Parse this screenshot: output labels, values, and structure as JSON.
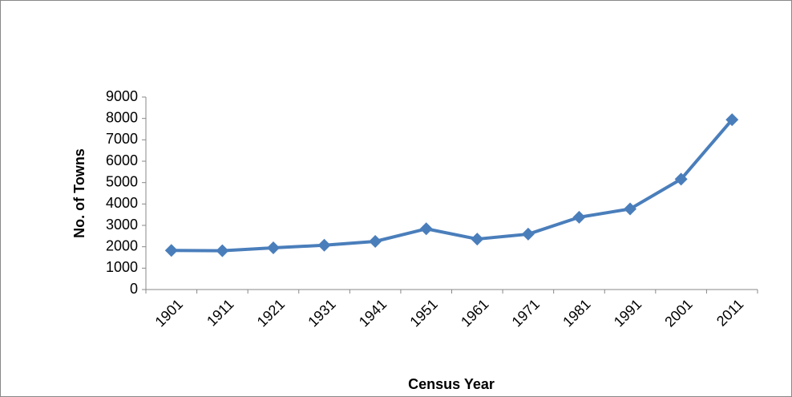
{
  "chart_data": {
    "type": "line",
    "categories": [
      "1901",
      "1911",
      "1921",
      "1931",
      "1941",
      "1951",
      "1961",
      "1971",
      "1981",
      "1991",
      "2001",
      "2011"
    ],
    "series": [
      {
        "name": "No. of Towns",
        "color": "#4a7ebb",
        "values": [
          1830,
          1815,
          1950,
          2070,
          2250,
          2840,
          2360,
          2590,
          3380,
          3770,
          5160,
          7940
        ]
      }
    ],
    "x_label": "Census Year",
    "y_label": "No. of Towns",
    "ylim": [
      0,
      9000
    ],
    "yticks": [
      0,
      1000,
      2000,
      3000,
      4000,
      5000,
      6000,
      7000,
      8000,
      9000
    ],
    "grid": false
  }
}
